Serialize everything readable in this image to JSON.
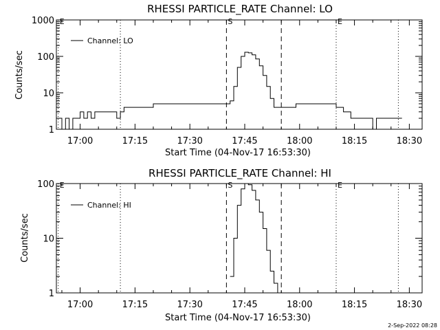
{
  "footer_timestamp": "2-Sep-2022 08:28",
  "chart_data": [
    {
      "type": "line",
      "title": "RHESSI PARTICLE_RATE Channel: LO",
      "xlabel": "Start Time (04-Nov-17 16:53:30)",
      "ylabel": "Counts/sec",
      "yscale": "log",
      "xlim": [
        "16:53:30",
        "18:33:30"
      ],
      "ylim": [
        1,
        1000
      ],
      "x_ticks": [
        "17:00",
        "17:15",
        "17:30",
        "17:45",
        "18:00",
        "18:15",
        "18:30"
      ],
      "y_ticks": [
        "1",
        "10",
        "100",
        "1000"
      ],
      "legend": {
        "position": "top-left",
        "entries": [
          "Channel: LO"
        ]
      },
      "markers": [
        {
          "time": "16:54",
          "label": "E",
          "style": "dotted"
        },
        {
          "time": "17:11",
          "label": "",
          "style": "dotted"
        },
        {
          "time": "17:40",
          "label": "S",
          "style": "dashed"
        },
        {
          "time": "17:55",
          "label": "",
          "style": "dashed"
        },
        {
          "time": "18:10",
          "label": "E",
          "style": "dotted"
        },
        {
          "time": "18:27",
          "label": "",
          "style": "dotted"
        }
      ],
      "series": [
        {
          "name": "Channel: LO",
          "x": [
            "16:54",
            "16:55",
            "16:56",
            "16:57",
            "16:58",
            "16:59",
            "17:00",
            "17:01",
            "17:02",
            "17:03",
            "17:04",
            "17:05",
            "17:06",
            "17:07",
            "17:08",
            "17:09",
            "17:10",
            "17:11",
            "17:12",
            "17:13",
            "17:14",
            "17:15",
            "17:16",
            "17:17",
            "17:18",
            "17:19",
            "17:20",
            "17:21",
            "17:22",
            "17:23",
            "17:24",
            "17:25",
            "17:26",
            "17:27",
            "17:28",
            "17:29",
            "17:30",
            "17:31",
            "17:32",
            "17:33",
            "17:34",
            "17:35",
            "17:36",
            "17:37",
            "17:38",
            "17:39",
            "17:40",
            "17:41",
            "17:42",
            "17:43",
            "17:44",
            "17:45",
            "17:46",
            "17:47",
            "17:48",
            "17:49",
            "17:50",
            "17:51",
            "17:52",
            "17:53",
            "17:54",
            "17:55",
            "17:56",
            "17:57",
            "17:58",
            "17:59",
            "18:00",
            "18:01",
            "18:02",
            "18:03",
            "18:04",
            "18:05",
            "18:06",
            "18:07",
            "18:08",
            "18:09",
            "18:10",
            "18:11",
            "18:12",
            "18:13",
            "18:14",
            "18:15",
            "18:16",
            "18:17",
            "18:18",
            "18:19",
            "18:20",
            "18:21",
            "18:22",
            "18:23",
            "18:24",
            "18:25",
            "18:26",
            "18:27"
          ],
          "y": [
            2,
            1,
            2,
            1,
            2,
            2,
            3,
            2,
            3,
            2,
            3,
            3,
            3,
            3,
            3,
            3,
            2,
            3,
            4,
            4,
            4,
            4,
            4,
            4,
            4,
            4,
            5,
            5,
            5,
            5,
            5,
            5,
            5,
            5,
            5,
            5,
            5,
            5,
            5,
            5,
            5,
            5,
            5,
            5,
            5,
            5,
            5,
            6,
            15,
            50,
            100,
            130,
            125,
            110,
            85,
            55,
            30,
            15,
            7,
            4,
            4,
            4,
            4,
            4,
            4,
            5,
            5,
            5,
            5,
            5,
            5,
            5,
            5,
            5,
            5,
            5,
            4,
            4,
            3,
            3,
            2,
            2,
            2,
            2,
            2,
            2,
            1,
            2,
            2,
            2,
            2,
            2,
            2,
            2
          ]
        }
      ]
    },
    {
      "type": "line",
      "title": "RHESSI PARTICLE_RATE Channel: HI",
      "xlabel": "Start Time (04-Nov-17 16:53:30)",
      "ylabel": "Counts/sec",
      "yscale": "log",
      "xlim": [
        "16:53:30",
        "18:33:30"
      ],
      "ylim": [
        1,
        100
      ],
      "x_ticks": [
        "17:00",
        "17:15",
        "17:30",
        "17:45",
        "18:00",
        "18:15",
        "18:30"
      ],
      "y_ticks": [
        "1",
        "10",
        "100"
      ],
      "legend": {
        "position": "top-left",
        "entries": [
          "Channel: HI"
        ]
      },
      "markers": [
        {
          "time": "16:54",
          "label": "E",
          "style": "dotted"
        },
        {
          "time": "17:11",
          "label": "",
          "style": "dotted"
        },
        {
          "time": "17:40",
          "label": "S",
          "style": "dashed"
        },
        {
          "time": "17:55",
          "label": "",
          "style": "dashed"
        },
        {
          "time": "18:10",
          "label": "E",
          "style": "dotted"
        },
        {
          "time": "18:27",
          "label": "",
          "style": "dotted"
        }
      ],
      "series": [
        {
          "name": "Channel: HI",
          "x": [
            "17:41",
            "17:42",
            "17:43",
            "17:44",
            "17:45",
            "17:46",
            "17:47",
            "17:48",
            "17:49",
            "17:50",
            "17:51",
            "17:52",
            "17:53",
            "17:54"
          ],
          "y": [
            2,
            10,
            40,
            80,
            100,
            95,
            75,
            50,
            30,
            15,
            6,
            2.5,
            1.5,
            1
          ]
        }
      ]
    }
  ]
}
